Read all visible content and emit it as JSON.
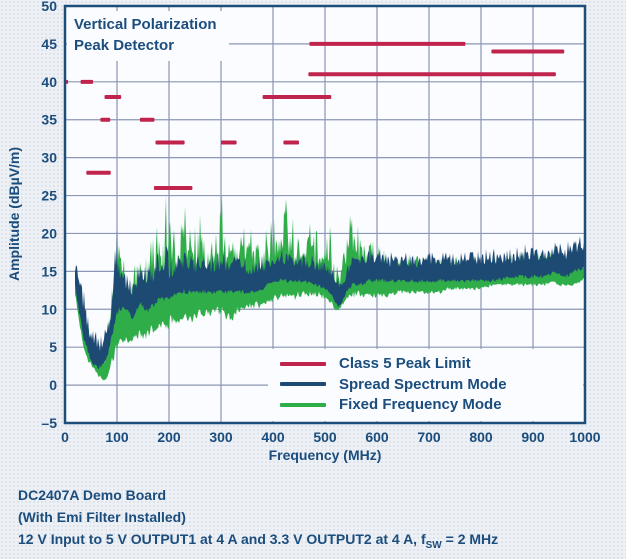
{
  "chart_data": {
    "type": "line",
    "title": "Vertical Polarization Peak Detector",
    "title_lines": [
      "Vertical Polarization",
      "Peak Detector"
    ],
    "xlabel": "Frequency (MHz)",
    "ylabel": "Amplitude (dBµV/m)",
    "xlim": [
      0,
      1000
    ],
    "ylim": [
      -5,
      50
    ],
    "x_ticks": [
      0,
      100,
      200,
      300,
      400,
      500,
      600,
      700,
      800,
      900,
      1000
    ],
    "y_tick_values": [
      50,
      45,
      40,
      35,
      30,
      25,
      20,
      15,
      10,
      5,
      0,
      -5
    ],
    "y_tick_labels": [
      "50",
      "45",
      "40",
      "35",
      "30",
      "25",
      "20",
      "15",
      "10",
      "5",
      "0",
      "–5"
    ],
    "grid": true,
    "legend_position": "inside-bottom-right",
    "series": [
      {
        "name": "Class 5 Peak Limit",
        "type": "limit-segments",
        "color": "#c0244d",
        "segments": [
          {
            "f1": 0,
            "f2": 6,
            "level": 40
          },
          {
            "f1": 30,
            "f2": 54,
            "level": 40
          },
          {
            "f1": 41,
            "f2": 88,
            "level": 28
          },
          {
            "f1": 68,
            "f2": 87,
            "level": 35
          },
          {
            "f1": 76,
            "f2": 108,
            "level": 38
          },
          {
            "f1": 144,
            "f2": 172,
            "level": 35
          },
          {
            "f1": 171,
            "f2": 245,
            "level": 26
          },
          {
            "f1": 174,
            "f2": 230,
            "level": 32
          },
          {
            "f1": 300,
            "f2": 330,
            "level": 32
          },
          {
            "f1": 380,
            "f2": 512,
            "level": 38
          },
          {
            "f1": 420,
            "f2": 450,
            "level": 32
          },
          {
            "f1": 468,
            "f2": 944,
            "level": 41
          },
          {
            "f1": 470,
            "f2": 770,
            "level": 45
          },
          {
            "f1": 820,
            "f2": 960,
            "level": 44
          }
        ]
      },
      {
        "name": "Spread Spectrum Mode",
        "type": "noisy-trace",
        "color": "#1d4a73",
        "envelope": [
          [
            20,
            13,
            16.5
          ],
          [
            25,
            10,
            16
          ],
          [
            30,
            8,
            15
          ],
          [
            35,
            6,
            13
          ],
          [
            40,
            5,
            11
          ],
          [
            45,
            4,
            9.5
          ],
          [
            50,
            3,
            8.5
          ],
          [
            55,
            2.5,
            7.5
          ],
          [
            60,
            2.2,
            7
          ],
          [
            65,
            2,
            6.5
          ],
          [
            70,
            2.2,
            6.5
          ],
          [
            75,
            2.5,
            7
          ],
          [
            80,
            3,
            8
          ],
          [
            85,
            4.5,
            10
          ],
          [
            90,
            6,
            13
          ],
          [
            95,
            7.5,
            17
          ],
          [
            100,
            8.5,
            20.5
          ],
          [
            105,
            9.5,
            17
          ],
          [
            110,
            10,
            16
          ],
          [
            115,
            10,
            15.5
          ],
          [
            120,
            9.5,
            15
          ],
          [
            125,
            9,
            14.5
          ],
          [
            130,
            8.5,
            14
          ],
          [
            135,
            9,
            14.5
          ],
          [
            140,
            10,
            16
          ],
          [
            145,
            10.5,
            16.5
          ],
          [
            150,
            10,
            16
          ],
          [
            155,
            9.5,
            15.5
          ],
          [
            160,
            9.5,
            15.5
          ],
          [
            165,
            10,
            16
          ],
          [
            170,
            10,
            16.5
          ],
          [
            175,
            10.5,
            17
          ],
          [
            180,
            11,
            17.5
          ],
          [
            185,
            11,
            17
          ],
          [
            190,
            11,
            17
          ],
          [
            195,
            11,
            18.5
          ],
          [
            200,
            11,
            17
          ],
          [
            210,
            11.5,
            17
          ],
          [
            220,
            12,
            17.5
          ],
          [
            230,
            12,
            18.5
          ],
          [
            240,
            12,
            17
          ],
          [
            250,
            12,
            17.5
          ],
          [
            260,
            12,
            17
          ],
          [
            280,
            12,
            17
          ],
          [
            300,
            12,
            18
          ],
          [
            320,
            12,
            17
          ],
          [
            340,
            12,
            17.5
          ],
          [
            360,
            12,
            17
          ],
          [
            380,
            12.5,
            17
          ],
          [
            400,
            13.5,
            18
          ],
          [
            420,
            13.5,
            18
          ],
          [
            440,
            13.5,
            18
          ],
          [
            460,
            13.5,
            17.5
          ],
          [
            480,
            13,
            17
          ],
          [
            500,
            12.5,
            16.5
          ],
          [
            510,
            12,
            16
          ],
          [
            520,
            10.5,
            14.5
          ],
          [
            527,
            10,
            14
          ],
          [
            535,
            11,
            15
          ],
          [
            545,
            12.5,
            16.5
          ],
          [
            555,
            13,
            17.5
          ],
          [
            570,
            13,
            17.5
          ],
          [
            585,
            13.5,
            18.5
          ],
          [
            600,
            13.5,
            18
          ],
          [
            630,
            13.5,
            17.5
          ],
          [
            660,
            13.5,
            17.5
          ],
          [
            700,
            13.5,
            17.5
          ],
          [
            740,
            13.5,
            17.5
          ],
          [
            780,
            13.5,
            17.5
          ],
          [
            820,
            13.5,
            18
          ],
          [
            860,
            14,
            18
          ],
          [
            900,
            14,
            19
          ],
          [
            920,
            14,
            18.5
          ],
          [
            940,
            14.5,
            19
          ],
          [
            960,
            14,
            18.5
          ],
          [
            975,
            14.5,
            19.5
          ],
          [
            990,
            15,
            20.5
          ],
          [
            1000,
            15,
            20
          ]
        ]
      },
      {
        "name": "Fixed Frequency Mode",
        "type": "noisy-trace",
        "color": "#2fad49",
        "envelope": [
          [
            20,
            12,
            15
          ],
          [
            25,
            9,
            14
          ],
          [
            30,
            7,
            13
          ],
          [
            35,
            5,
            11
          ],
          [
            40,
            4,
            9.5
          ],
          [
            45,
            3,
            8.5
          ],
          [
            50,
            2.5,
            7.5
          ],
          [
            55,
            2,
            6.5
          ],
          [
            60,
            1.5,
            6
          ],
          [
            65,
            1,
            5.5
          ],
          [
            70,
            0.7,
            5
          ],
          [
            75,
            0.6,
            4.5
          ],
          [
            80,
            0.8,
            5.5
          ],
          [
            85,
            1.5,
            9
          ],
          [
            90,
            2.5,
            14
          ],
          [
            95,
            3.5,
            18
          ],
          [
            100,
            4,
            20
          ],
          [
            105,
            5,
            20
          ],
          [
            110,
            5,
            18
          ],
          [
            115,
            5.5,
            16
          ],
          [
            120,
            5.5,
            14.5
          ],
          [
            125,
            5.5,
            14
          ],
          [
            130,
            5.5,
            13.5
          ],
          [
            135,
            6,
            16
          ],
          [
            140,
            6,
            19
          ],
          [
            145,
            6,
            18.5
          ],
          [
            150,
            6,
            17
          ],
          [
            155,
            6,
            16.5
          ],
          [
            160,
            6,
            19.5
          ],
          [
            165,
            6.5,
            21
          ],
          [
            170,
            6.5,
            20
          ],
          [
            175,
            7,
            21.5
          ],
          [
            180,
            7,
            22.5
          ],
          [
            185,
            7,
            21
          ],
          [
            190,
            7,
            22
          ],
          [
            195,
            7,
            25.5
          ],
          [
            200,
            7.5,
            21
          ],
          [
            205,
            8,
            22.5
          ],
          [
            210,
            8,
            22
          ],
          [
            220,
            8,
            21
          ],
          [
            225,
            8,
            23
          ],
          [
            230,
            8,
            24
          ],
          [
            235,
            8,
            21
          ],
          [
            240,
            8,
            20.5
          ],
          [
            250,
            8.5,
            21
          ],
          [
            260,
            9,
            22.5
          ],
          [
            270,
            9,
            21
          ],
          [
            280,
            9,
            20.5
          ],
          [
            290,
            9,
            22
          ],
          [
            295,
            9,
            23
          ],
          [
            300,
            9,
            25
          ],
          [
            305,
            9,
            25.5
          ],
          [
            310,
            8.5,
            21
          ],
          [
            320,
            8,
            21
          ],
          [
            330,
            9,
            21.5
          ],
          [
            340,
            10,
            23.5
          ],
          [
            350,
            10,
            24
          ],
          [
            360,
            10,
            20
          ],
          [
            370,
            10,
            20.5
          ],
          [
            380,
            10,
            19.5
          ],
          [
            390,
            10.5,
            21
          ],
          [
            400,
            11,
            22
          ],
          [
            410,
            11,
            22
          ],
          [
            420,
            11,
            22.5
          ],
          [
            425,
            11,
            24.5
          ],
          [
            430,
            11,
            22
          ],
          [
            440,
            11,
            22
          ],
          [
            450,
            11.5,
            21
          ],
          [
            460,
            11.5,
            20.5
          ],
          [
            470,
            11.5,
            21.5
          ],
          [
            480,
            11.5,
            20
          ],
          [
            490,
            11.5,
            21
          ],
          [
            500,
            11,
            19.5
          ],
          [
            510,
            10.5,
            21
          ],
          [
            520,
            9.5,
            16
          ],
          [
            527,
            9.5,
            15.5
          ],
          [
            535,
            10.5,
            19
          ],
          [
            545,
            11,
            23
          ],
          [
            550,
            11.5,
            22
          ],
          [
            560,
            11.5,
            21.5
          ],
          [
            570,
            11.5,
            20.5
          ],
          [
            580,
            11.5,
            20
          ],
          [
            590,
            11.5,
            19.5
          ],
          [
            600,
            11.5,
            18.5
          ],
          [
            620,
            11.5,
            17.5
          ],
          [
            640,
            12,
            17.5
          ],
          [
            660,
            12,
            17.5
          ],
          [
            680,
            12,
            17
          ],
          [
            700,
            12,
            17
          ],
          [
            720,
            12,
            17
          ],
          [
            740,
            12.5,
            17
          ],
          [
            760,
            12.5,
            17
          ],
          [
            780,
            12.5,
            17
          ],
          [
            800,
            12.5,
            17
          ],
          [
            820,
            13,
            17.5
          ],
          [
            840,
            13,
            17.5
          ],
          [
            860,
            13,
            17.5
          ],
          [
            880,
            13,
            17.5
          ],
          [
            900,
            13,
            18
          ],
          [
            920,
            13,
            17.5
          ],
          [
            940,
            13.5,
            18
          ],
          [
            950,
            13,
            17
          ],
          [
            960,
            13,
            16.5
          ],
          [
            975,
            13,
            16.5
          ],
          [
            990,
            13.5,
            17
          ],
          [
            1000,
            14,
            17
          ]
        ]
      }
    ]
  },
  "colors": {
    "text_navy": "#1b4d7d",
    "grid": "#8d96b4",
    "axis_border": "#1d4e79",
    "plot_background": "#fafcff",
    "page_background": "#edf0f4",
    "limit_red": "#c0244d",
    "spread_spectrum_navy": "#1d4a73",
    "fixed_frequency_green": "#2fad49"
  },
  "caption": {
    "line1": "DC2407A Demo Board",
    "line2": "(With Emi Filter Installed)",
    "line3_pre": "12 V Input to 5 V OUTPUT1 at 4 A and 3.3 V OUTPUT2 at 4 A, f",
    "line3_sub": "SW",
    "line3_post": " = 2 MHz"
  }
}
